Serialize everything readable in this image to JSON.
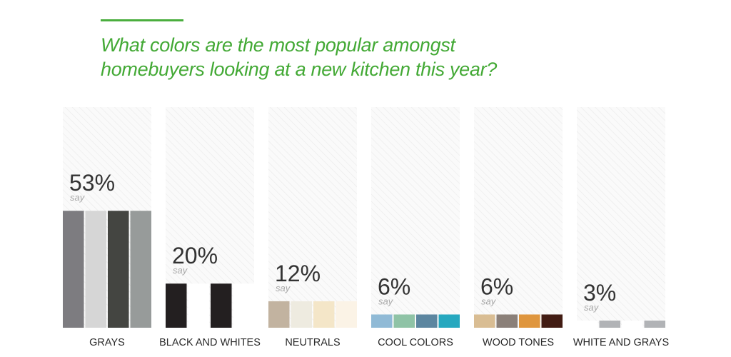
{
  "title_lines": [
    "What colors are the most popular amongst",
    "homebuyers looking at a new kitchen this year?"
  ],
  "colors": {
    "accent": "#4aae3e",
    "title": "#43a935",
    "value_text": "#333333",
    "say_text": "#a8a8a8",
    "category_text": "#2a2a2a"
  },
  "chart_data": {
    "type": "bar",
    "title": "What colors are the most popular amongst homebuyers looking at a new kitchen this year?",
    "categories": [
      "GRAYS",
      "BLACK AND WHITES",
      "NEUTRALS",
      "COOL COLORS",
      "WOOD TONES",
      "WHITE AND GRAYS"
    ],
    "values": [
      53,
      20,
      12,
      6,
      6,
      3
    ],
    "value_labels": [
      "53%",
      "20%",
      "12%",
      "6%",
      "6%",
      "3%"
    ],
    "sublabel": "say",
    "ylim": [
      0,
      100
    ],
    "grid": false,
    "legend": "none",
    "swatches": [
      [
        "#7d7c80",
        "#d6d6d6",
        "#444541",
        "#979b9a"
      ],
      [
        "#231f20",
        "#ffffff",
        "#231f20",
        "#ffffff"
      ],
      [
        "#c2b3a0",
        "#eeebe0",
        "#f4e6c8",
        "#fbf3e6"
      ],
      [
        "#90bad6",
        "#8fc3a6",
        "#5c86a0",
        "#26a8bf"
      ],
      [
        "#d9bd93",
        "#8b8079",
        "#df963e",
        "#421c13"
      ],
      [
        "#ffffff",
        "#b1b3b6",
        "#ffffff",
        "#b1b3b6"
      ]
    ]
  }
}
